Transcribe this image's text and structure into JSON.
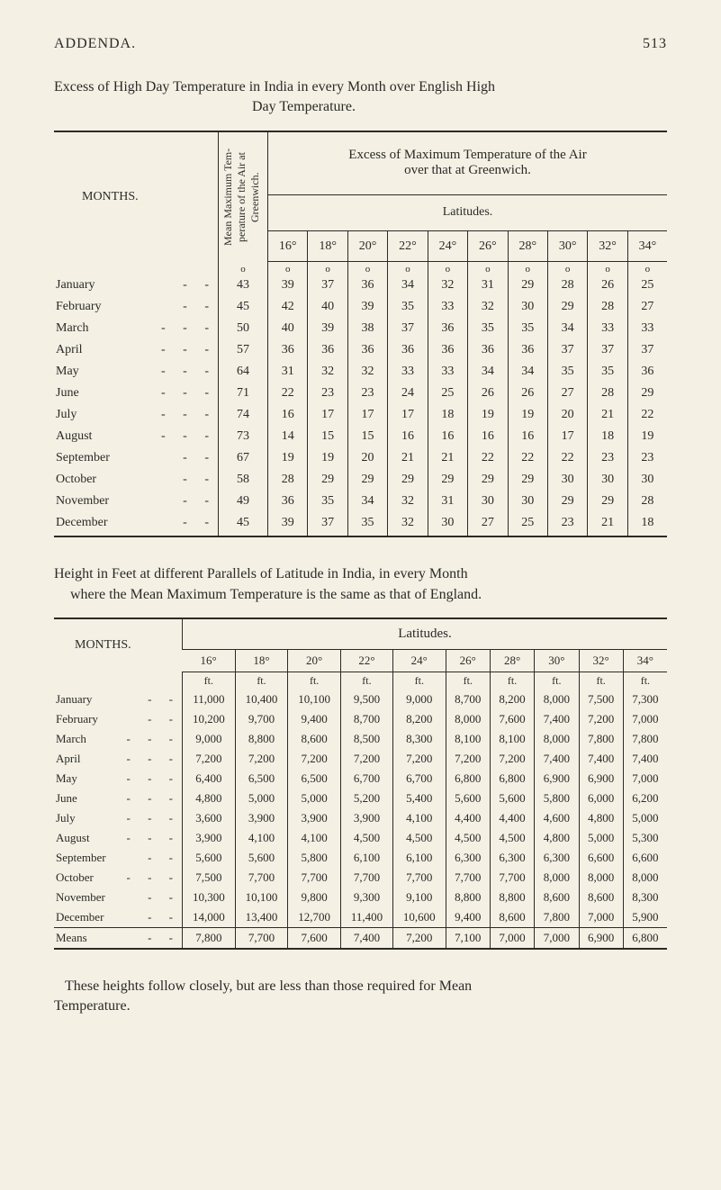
{
  "header": {
    "section": "ADDENDA.",
    "page": "513"
  },
  "table1": {
    "title_line1": "Excess of High Day Temperature in India in every Month over English High",
    "title_line2": "Day Temperature.",
    "months_label": "MONTHS.",
    "vertical_label": "Mean Maximum Tem-\nperature of the Air\nat Greenwich.",
    "excess_label_line1": "Excess of Maximum Temperature of the Air",
    "excess_label_line2": "over that at Greenwich.",
    "latitudes_label": "Latitudes.",
    "degree_headers": [
      "16°",
      "18°",
      "20°",
      "22°",
      "24°",
      "26°",
      "28°",
      "30°",
      "32°",
      "34°"
    ],
    "circle": "o",
    "rows": [
      {
        "m": "January",
        "d": "-   -",
        "v": [
          "43",
          "39",
          "37",
          "36",
          "34",
          "32",
          "31",
          "29",
          "28",
          "26",
          "25"
        ]
      },
      {
        "m": "February",
        "d": "-   -",
        "v": [
          "45",
          "42",
          "40",
          "39",
          "35",
          "33",
          "32",
          "30",
          "29",
          "28",
          "27"
        ]
      },
      {
        "m": "March",
        "d": "-   -   -",
        "v": [
          "50",
          "40",
          "39",
          "38",
          "37",
          "36",
          "35",
          "35",
          "34",
          "33",
          "33"
        ]
      },
      {
        "m": "April",
        "d": "-   -   -",
        "v": [
          "57",
          "36",
          "36",
          "36",
          "36",
          "36",
          "36",
          "36",
          "37",
          "37",
          "37"
        ]
      },
      {
        "m": "May",
        "d": "-   -   -",
        "v": [
          "64",
          "31",
          "32",
          "32",
          "33",
          "33",
          "34",
          "34",
          "35",
          "35",
          "36"
        ]
      },
      {
        "m": "June",
        "d": "-   -   -",
        "v": [
          "71",
          "22",
          "23",
          "23",
          "24",
          "25",
          "26",
          "26",
          "27",
          "28",
          "29"
        ]
      },
      {
        "m": "July",
        "d": "-   -   -",
        "v": [
          "74",
          "16",
          "17",
          "17",
          "17",
          "18",
          "19",
          "19",
          "20",
          "21",
          "22"
        ]
      },
      {
        "m": "August",
        "d": "-   -   -",
        "v": [
          "73",
          "14",
          "15",
          "15",
          "16",
          "16",
          "16",
          "16",
          "17",
          "18",
          "19"
        ]
      },
      {
        "m": "September",
        "d": "-   -",
        "v": [
          "67",
          "19",
          "19",
          "20",
          "21",
          "21",
          "22",
          "22",
          "22",
          "23",
          "23"
        ]
      },
      {
        "m": "October",
        "d": "-   -",
        "v": [
          "58",
          "28",
          "29",
          "29",
          "29",
          "29",
          "29",
          "29",
          "30",
          "30",
          "30"
        ]
      },
      {
        "m": "November",
        "d": "-   -",
        "v": [
          "49",
          "36",
          "35",
          "34",
          "32",
          "31",
          "30",
          "30",
          "29",
          "29",
          "28"
        ]
      },
      {
        "m": "December",
        "d": "-   -",
        "v": [
          "45",
          "39",
          "37",
          "35",
          "32",
          "30",
          "27",
          "25",
          "23",
          "21",
          "18"
        ]
      }
    ]
  },
  "table2": {
    "intro_line1": "Height in Feet at different Parallels of Latitude in India, in every Month",
    "intro_line2": "where the Mean Maximum Temperature is the same as that of England.",
    "months_label": "MONTHS.",
    "latitudes_label": "Latitudes.",
    "degree_headers": [
      "16°",
      "18°",
      "20°",
      "22°",
      "24°",
      "26°",
      "28°",
      "30°",
      "32°",
      "34°"
    ],
    "unit": "ft.",
    "rows": [
      {
        "m": "January",
        "d": "-  -",
        "v": [
          "11,000",
          "10,400",
          "10,100",
          "9,500",
          "9,000",
          "8,700",
          "8,200",
          "8,000",
          "7,500",
          "7,300"
        ]
      },
      {
        "m": "February",
        "d": "-  -",
        "v": [
          "10,200",
          "9,700",
          "9,400",
          "8,700",
          "8,200",
          "8,000",
          "7,600",
          "7,400",
          "7,200",
          "7,000"
        ]
      },
      {
        "m": "March",
        "d": "-  -  -",
        "v": [
          "9,000",
          "8,800",
          "8,600",
          "8,500",
          "8,300",
          "8,100",
          "8,100",
          "8,000",
          "7,800",
          "7,800"
        ]
      },
      {
        "m": "April",
        "d": "-  -  -",
        "v": [
          "7,200",
          "7,200",
          "7,200",
          "7,200",
          "7,200",
          "7,200",
          "7,200",
          "7,400",
          "7,400",
          "7,400"
        ]
      },
      {
        "m": "May",
        "d": "-  -  -",
        "v": [
          "6,400",
          "6,500",
          "6,500",
          "6,700",
          "6,700",
          "6,800",
          "6,800",
          "6,900",
          "6,900",
          "7,000"
        ]
      },
      {
        "m": "June",
        "d": "-  -  -",
        "v": [
          "4,800",
          "5,000",
          "5,000",
          "5,200",
          "5,400",
          "5,600",
          "5,600",
          "5,800",
          "6,000",
          "6,200"
        ]
      },
      {
        "m": "July",
        "d": "-  -  -",
        "v": [
          "3,600",
          "3,900",
          "3,900",
          "3,900",
          "4,100",
          "4,400",
          "4,400",
          "4,600",
          "4,800",
          "5,000"
        ]
      },
      {
        "m": "August",
        "d": "-  -  -",
        "v": [
          "3,900",
          "4,100",
          "4,100",
          "4,500",
          "4,500",
          "4,500",
          "4,500",
          "4,800",
          "5,000",
          "5,300"
        ]
      },
      {
        "m": "September",
        "d": "-  -",
        "v": [
          "5,600",
          "5,600",
          "5,800",
          "6,100",
          "6,100",
          "6,300",
          "6,300",
          "6,300",
          "6,600",
          "6,600"
        ]
      },
      {
        "m": "October",
        "d": "-  -  -",
        "v": [
          "7,500",
          "7,700",
          "7,700",
          "7,700",
          "7,700",
          "7,700",
          "7,700",
          "8,000",
          "8,000",
          "8,000"
        ]
      },
      {
        "m": "November",
        "d": "-  -",
        "v": [
          "10,300",
          "10,100",
          "9,800",
          "9,300",
          "9,100",
          "8,800",
          "8,800",
          "8,600",
          "8,600",
          "8,300"
        ]
      },
      {
        "m": "December",
        "d": "-  -",
        "v": [
          "14,000",
          "13,400",
          "12,700",
          "11,400",
          "10,600",
          "9,400",
          "8,600",
          "7,800",
          "7,000",
          "5,900"
        ]
      }
    ],
    "means_label": "Means",
    "means_dash": "-  -",
    "means": [
      "7,800",
      "7,700",
      "7,600",
      "7,400",
      "7,200",
      "7,100",
      "7,000",
      "7,000",
      "6,900",
      "6,800"
    ]
  },
  "footnote_line1": "These heights follow closely, but are less than those required for Mean",
  "footnote_line2": "Temperature."
}
